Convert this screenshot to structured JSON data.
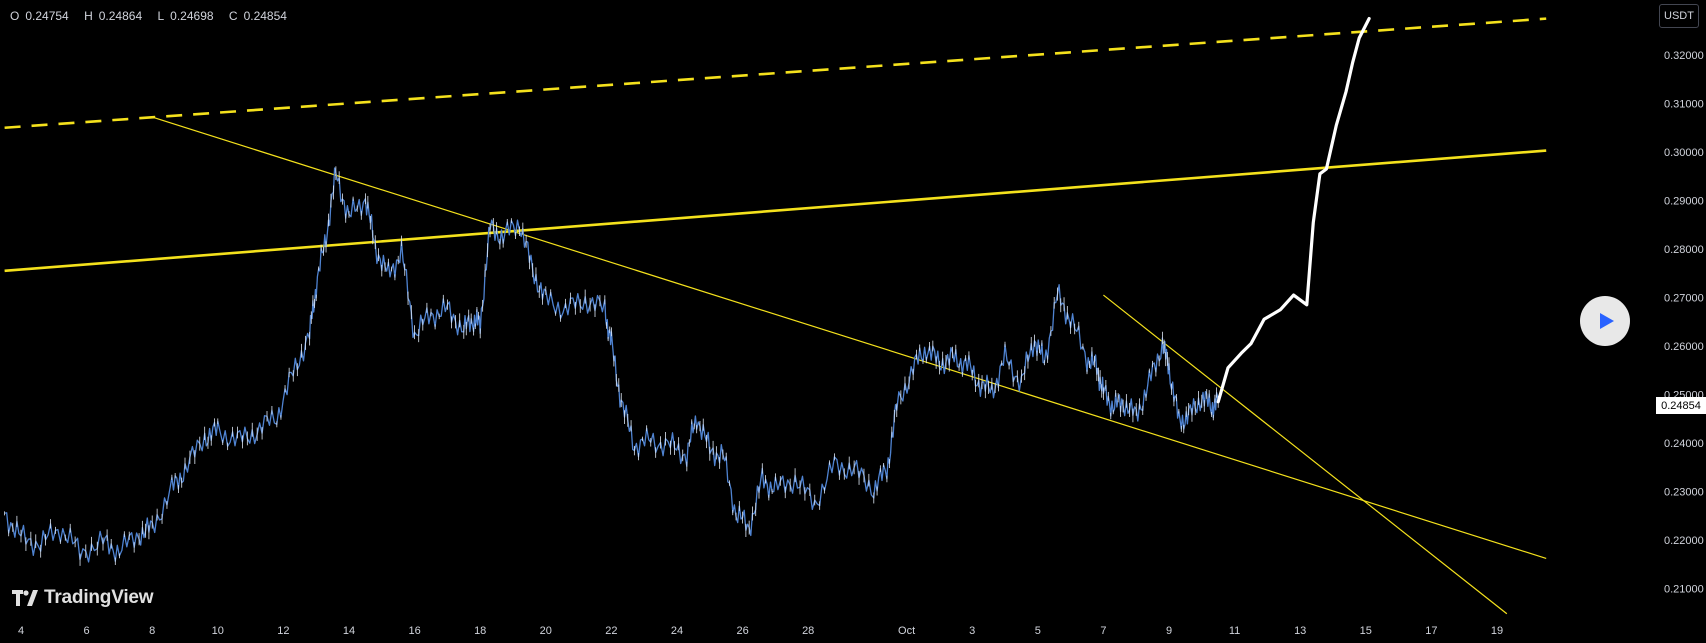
{
  "header": {
    "ohlc": [
      {
        "label": "O",
        "value": "0.24754"
      },
      {
        "label": "H",
        "value": "0.24864"
      },
      {
        "label": "L",
        "value": "0.24698"
      },
      {
        "label": "C",
        "value": "0.24854"
      }
    ],
    "currency": "USDT"
  },
  "watermark": {
    "text": "TradingView"
  },
  "last_price": "0.24854",
  "colors": {
    "background": "#000000",
    "price_line": "#4f83d1",
    "trendline": "#f4e11c",
    "projection": "#ffffff",
    "play_icon": "#2962ff"
  },
  "chart_data": {
    "type": "line",
    "title": "",
    "xlabel": "",
    "ylabel": "",
    "ylim": [
      0.2045,
      0.3275
    ],
    "x_tick_labels": [
      "4",
      "6",
      "8",
      "10",
      "12",
      "14",
      "16",
      "18",
      "20",
      "22",
      "24",
      "26",
      "28",
      "Oct",
      "3",
      "5",
      "7",
      "9",
      "11",
      "13",
      "15",
      "17",
      "19"
    ],
    "y_tick_labels": [
      "0.32000",
      "0.31000",
      "0.30000",
      "0.29000",
      "0.28000",
      "0.27000",
      "0.26000",
      "0.25000",
      "0.24000",
      "0.23000",
      "0.22000",
      "0.21000"
    ],
    "x_day_positions": [
      4,
      6,
      8,
      10,
      12,
      14,
      16,
      18,
      20,
      22,
      24,
      26,
      28,
      31,
      33,
      35,
      37,
      39,
      41,
      43,
      45,
      47,
      49
    ],
    "price_series": {
      "x": [
        3.5,
        4,
        4.6,
        5.2,
        5.8,
        6.5,
        7,
        7.6,
        8,
        8.6,
        9,
        9.6,
        10,
        10.6,
        11.2,
        11.8,
        12.3,
        12.8,
        13,
        13.3,
        13.6,
        14,
        14.5,
        14.8,
        15.2,
        15.6,
        16,
        16.5,
        17,
        17.5,
        17.8,
        18,
        18.3,
        18.7,
        19.2,
        19.6,
        20,
        20.6,
        21.2,
        21.8,
        22,
        22.3,
        22.7,
        23.2,
        23.8,
        24.3,
        24.6,
        25,
        25.4,
        25.8,
        26.2,
        26.6,
        27,
        27.6,
        28.2,
        28.8,
        29.4,
        30,
        30.4,
        30.7,
        31.2,
        31.6,
        32,
        32.4,
        32.8,
        33.2,
        33.6,
        34,
        34.5,
        34.9,
        35.2,
        35.6,
        36,
        36.5,
        36.8,
        37,
        37.3,
        37.6,
        38,
        38.4,
        38.8,
        39,
        39.3,
        39.6,
        40,
        40.3,
        40.5
      ],
      "close": [
        0.2255,
        0.2205,
        0.2192,
        0.2225,
        0.2175,
        0.2195,
        0.2178,
        0.2212,
        0.2225,
        0.2305,
        0.2345,
        0.2412,
        0.2425,
        0.2405,
        0.2425,
        0.2455,
        0.2545,
        0.2625,
        0.2725,
        0.2825,
        0.2955,
        0.2865,
        0.2905,
        0.2805,
        0.2745,
        0.2795,
        0.2625,
        0.2665,
        0.2675,
        0.2635,
        0.2655,
        0.2645,
        0.2845,
        0.2825,
        0.2855,
        0.2755,
        0.2695,
        0.2675,
        0.2695,
        0.2675,
        0.2605,
        0.2485,
        0.2395,
        0.2405,
        0.2395,
        0.2375,
        0.2455,
        0.2385,
        0.2375,
        0.2255,
        0.2225,
        0.2325,
        0.2305,
        0.2325,
        0.2275,
        0.2355,
        0.2345,
        0.2305,
        0.2345,
        0.2475,
        0.2555,
        0.2595,
        0.2565,
        0.2575,
        0.2565,
        0.2525,
        0.2505,
        0.2575,
        0.2525,
        0.2615,
        0.2565,
        0.2705,
        0.2655,
        0.2575,
        0.2555,
        0.2505,
        0.2475,
        0.2485,
        0.2455,
        0.2525,
        0.2605,
        0.2555,
        0.2445,
        0.2455,
        0.2495,
        0.2475,
        0.2485
      ]
    },
    "trendlines": [
      {
        "name": "upper-channel-dashed",
        "style": "dashed",
        "points": [
          [
            3.5,
            0.305
          ],
          [
            50.5,
            0.3275
          ]
        ]
      },
      {
        "name": "horizontal-resistance",
        "style": "solid",
        "points": [
          [
            3.5,
            0.2755
          ],
          [
            50.5,
            0.3003
          ]
        ]
      },
      {
        "name": "long-descending-support",
        "style": "thin",
        "points": [
          [
            8,
            0.3072
          ],
          [
            50.5,
            0.2162
          ]
        ]
      },
      {
        "name": "falling-wedge-top",
        "style": "thin",
        "points": [
          [
            37,
            0.2705
          ],
          [
            49.3,
            0.2048
          ]
        ]
      }
    ],
    "projection_path": {
      "x": [
        40.5,
        40.8,
        41.2,
        41.5,
        41.9,
        42.4,
        42.8,
        43.2,
        43.4,
        43.6,
        43.8,
        44.1,
        44.4,
        44.6,
        44.8,
        45.1
      ],
      "values": [
        0.2485,
        0.2555,
        0.2585,
        0.2605,
        0.2655,
        0.2675,
        0.2705,
        0.2685,
        0.2855,
        0.2955,
        0.2965,
        0.3055,
        0.3125,
        0.3185,
        0.3235,
        0.3275
      ]
    },
    "grid": false,
    "legend": "none"
  }
}
